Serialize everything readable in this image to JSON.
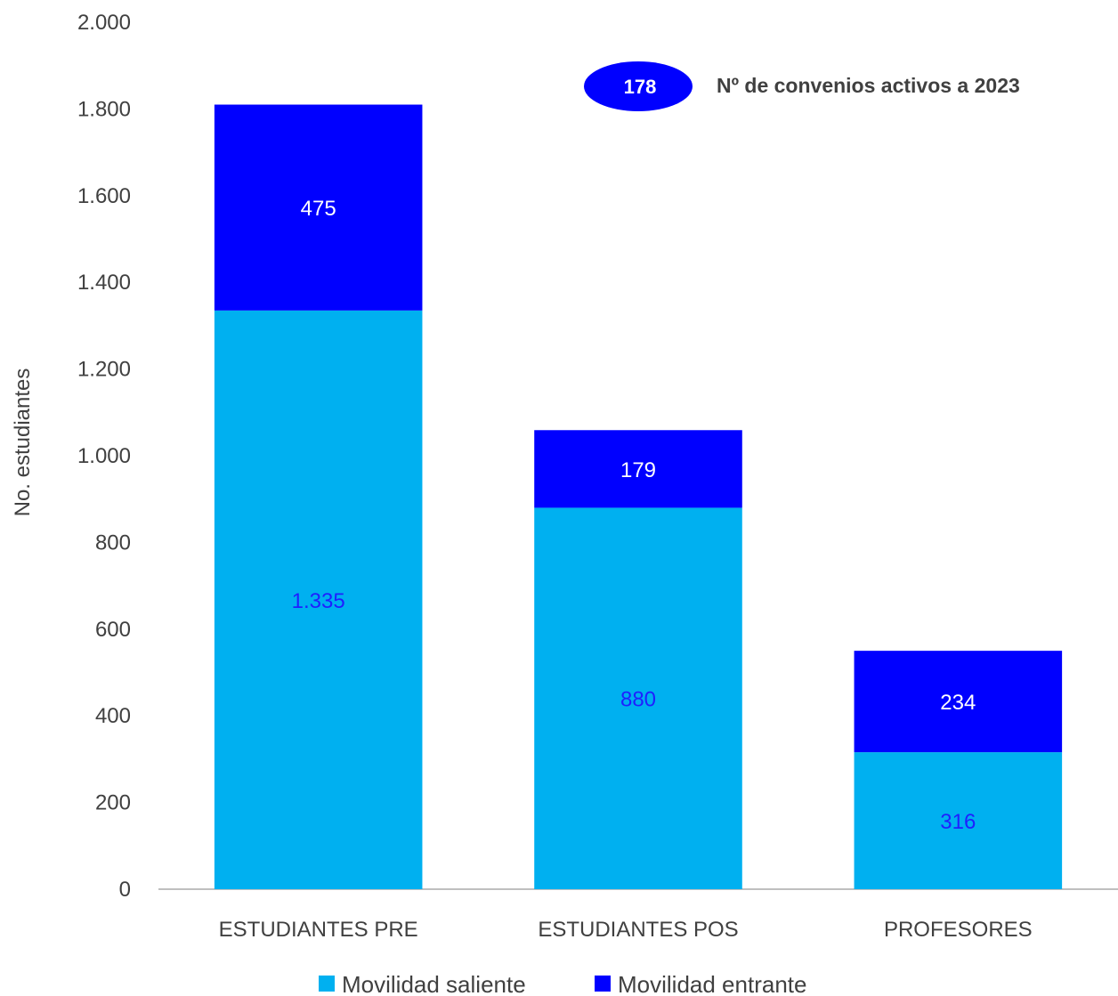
{
  "chart_data": {
    "type": "bar",
    "stacked": true,
    "categories": [
      "ESTUDIANTES PRE",
      "ESTUDIANTES POS",
      "PROFESORES"
    ],
    "series": [
      {
        "name": "Movilidad saliente",
        "values": [
          1335,
          880,
          316
        ],
        "labels": [
          "1.335",
          "880",
          "316"
        ],
        "color": "#00B0F0",
        "label_color": "#1F1FFF"
      },
      {
        "name": "Movilidad entrante",
        "values": [
          475,
          179,
          234
        ],
        "labels": [
          "475",
          "179",
          "234"
        ],
        "color": "#0000FF",
        "label_color": "#FFFFFF"
      }
    ],
    "ylabel": "No. estudiantes",
    "ylim": [
      0,
      2000
    ],
    "yticks": [
      0,
      200,
      400,
      600,
      800,
      1000,
      1200,
      1400,
      1600,
      1800,
      2000
    ],
    "ytick_labels": [
      "0",
      "200",
      "400",
      "600",
      "800",
      "1.000",
      "1.200",
      "1.400",
      "1.600",
      "1.800",
      "2.000"
    ],
    "grid": false,
    "legend_position": "bottom",
    "annotation": {
      "badge": "178",
      "text": "Nº de convenios activos a 2023",
      "badge_color": "#0000FF"
    }
  }
}
